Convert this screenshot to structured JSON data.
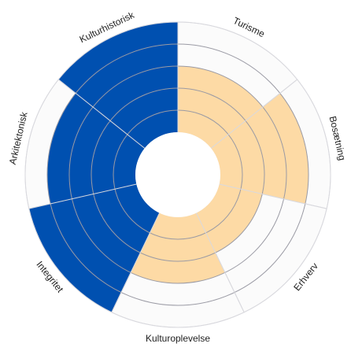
{
  "chart_data": {
    "type": "polar-area",
    "max_value": 5,
    "rings": [
      1,
      2,
      3,
      4,
      5
    ],
    "grid": true,
    "colors": {
      "background_wedge": "#fbfbfb",
      "grid": "#9a9aa4",
      "outline": "#d9d9de",
      "center": "#ffffff"
    },
    "segments": [
      {
        "label": "Turisme",
        "value": 3,
        "color": "#fddaa5"
      },
      {
        "label": "Bosætning",
        "value": 4,
        "color": "#fddaa5"
      },
      {
        "label": "Erhverv",
        "value": 2,
        "color": "#fddaa5"
      },
      {
        "label": "Kulturoplevelse",
        "value": 3,
        "color": "#fddaa5"
      },
      {
        "label": "Integritet",
        "value": 5,
        "color": "#0050b0"
      },
      {
        "label": "Arkitektonisk",
        "value": 4,
        "color": "#0050b0"
      },
      {
        "label": "Kulturhistorisk",
        "value": 5,
        "color": "#0050b0"
      }
    ]
  }
}
